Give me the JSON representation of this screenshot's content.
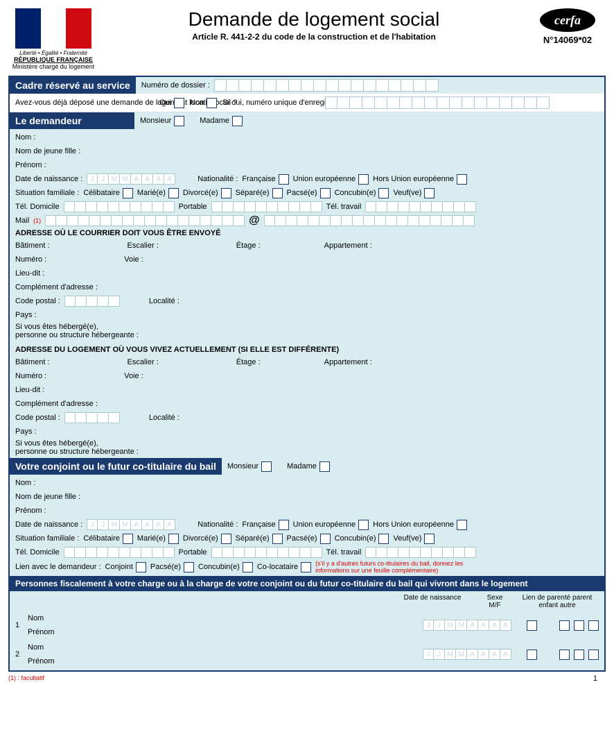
{
  "colors": {
    "bar_dark": "#1a3a6e",
    "bar_light": "#d9edf0",
    "border": "#a7c9cf",
    "red": "#d00"
  },
  "header": {
    "motto": "Liberté • Égalité • Fraternité",
    "republic": "RÉPUBLIQUE FRANÇAISE",
    "ministry": "Ministère chargé du logement",
    "title": "Demande de logement social",
    "subtitle": "Article R. 441-2-2 du  code de la construction et de l'habitation",
    "cerfa_label": "cerfa",
    "cerfa_number": "N°14069*02"
  },
  "service": {
    "section_title": "Cadre réservé au service",
    "dossier_label": "Numéro de dossier :",
    "previous_q": "Avez-vous déjà déposé une demande de logement locatif social ?",
    "oui": "Oui",
    "non": "Non",
    "if_yes": "Si oui, numéro unique d'enregistrement attribué :"
  },
  "applicant": {
    "section_title": "Le demandeur",
    "mr": "Monsieur",
    "mrs": "Madame",
    "nom": "Nom :",
    "maiden": "Nom de jeune fille :",
    "prenom": "Prénom :",
    "dob": "Date de naissance :",
    "dob_ph": [
      "J",
      "J",
      "M",
      "M",
      "A",
      "A",
      "A",
      "A"
    ],
    "nationality": "Nationalité :",
    "nat_opts": [
      "Française",
      "Union européenne",
      "Hors Union européenne"
    ],
    "family": "Situation familiale :",
    "family_opts": [
      "Célibataire",
      "Marié(e)",
      "Divorcé(e)",
      "Séparé(e)",
      "Pacsé(e)",
      "Concubin(e)",
      "Veuf(ve)"
    ],
    "tel_home": "Tél.  Domicile",
    "tel_mob": "Portable",
    "tel_work": "Tél.  travail",
    "mail": "Mail",
    "mail_note": "(1)",
    "at": "@"
  },
  "address1": {
    "title": "ADRESSE OÙ LE COURRIER DOIT VOUS ÊTRE ENVOYÉ",
    "batiment": "Bâtiment :",
    "escalier": "Escalier :",
    "etage": "Étage :",
    "apt": "Appartement :",
    "numero": "Numéro :",
    "voie": "Voie :",
    "lieudit": "Lieu-dit :",
    "complement": "Complément d'adresse :",
    "cp": "Code postal :",
    "localite": "Localité :",
    "pays": "Pays :",
    "host": "Si vous êtes hébergé(e),\npersonne ou structure hébergeante :"
  },
  "address2": {
    "title": "ADRESSE DU LOGEMENT OÙ VOUS VIVEZ ACTUELLEMENT (SI ELLE EST DIFFÉRENTE)"
  },
  "spouse": {
    "section_title": "Votre conjoint ou le futur co-titulaire du bail",
    "link": "Lien avec le demandeur :",
    "link_opts": [
      "Conjoint",
      "Pacsé(e)",
      "Concubin(e)",
      "Co-locataire"
    ],
    "link_note": "(s'il y a d'autres futurs co-titulaires du bail, donnez les informations sur une feuille complémentaire)"
  },
  "dependents": {
    "section_title": "Personnes fiscalement à votre charge ou à la charge de votre conjoint ou du futur co-titulaire du bail qui vivront dans le logement",
    "dob_col": "Date de naissance",
    "sex_col": "Sexe M/F",
    "rel_col": "Lien de parenté parent enfant autre",
    "nom": "Nom",
    "prenom": "Prénom",
    "rows": [
      "1",
      "2"
    ]
  },
  "footer": {
    "note": "(1) : facultatif",
    "page": "1"
  }
}
